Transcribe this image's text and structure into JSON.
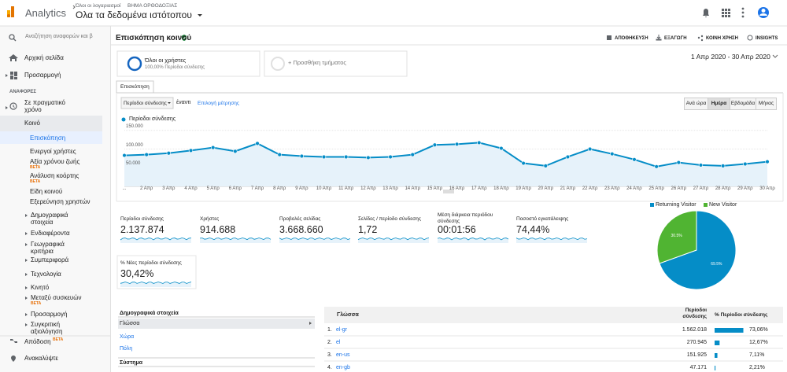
{
  "topbar": {
    "product": "Analytics",
    "account": "Όλοι οι λογαριασμοί",
    "property": "ΒΗΜΑ ΟΡΘΟΔΟΞΙΑΣ",
    "view": "Ολα τα δεδομένα ιστότοπου"
  },
  "sidebar": {
    "search": "Αναζήτηση αναφορών και β",
    "home": "Αρχική σελίδα",
    "customization": "Προσαρμογή",
    "section": "ΑΝΑΦΟΡΕΣ",
    "realtime": "Σε πραγματικό χρόνο",
    "audience": "Κοινό",
    "audience_items": [
      {
        "label": "Επισκόπηση"
      },
      {
        "label": "Ενεργοί χρήστες"
      },
      {
        "label": "Αξία χρόνου ζωής",
        "badge": "BETA"
      },
      {
        "label": "Ανάλυση κοόρτης",
        "badge": "BETA"
      },
      {
        "label": "Είδη κοινού"
      },
      {
        "label": "Εξερεύνηση χρηστών"
      }
    ],
    "audience_groups": [
      {
        "label": "Δημογραφικά στοιχεία"
      },
      {
        "label": "Ενδιαφέροντα"
      },
      {
        "label": "Γεωγραφικά κριτήρια"
      },
      {
        "label": "Συμπεριφορά"
      },
      {
        "label": "Τεχνολογία"
      },
      {
        "label": "Κινητό"
      },
      {
        "label": "Μεταξύ συσκευών",
        "badge": "BETA"
      },
      {
        "label": "Προσαρμογή"
      },
      {
        "label": "Συγκριτική αξιολόγηση"
      }
    ],
    "attribution": {
      "label": "Απόδοση",
      "badge": "BETA"
    },
    "discover": "Ανακαλύψτε"
  },
  "header": {
    "title": "Επισκόπηση κοινού",
    "actions": [
      "ΑΠΟΘΗΚΕΥΣΗ",
      "ΕΞΑΓΩΓΗ",
      "ΚΟΙΝΗ ΧΡΗΣΗ",
      "INSIGHTS"
    ]
  },
  "segments": {
    "active": {
      "name": "Όλοι οι χρήστες",
      "detail": "100,00% Περίοδοι σύνδεσης"
    },
    "add": "+ Προσθήκη τμήματος"
  },
  "date_range": "1 Απρ 2020 - 30 Απρ 2020",
  "tab": "Επισκόπηση",
  "controls": {
    "metric": "Περίοδοι σύνδεσης",
    "versus": "έναντι",
    "select_metric": "Επιλογή μέτρησης",
    "granularity": [
      "Ανά ώρα",
      "Ημέρα",
      "Εβδομάδα",
      "Μήνας"
    ],
    "selected": "Ημέρα"
  },
  "chart_data": {
    "type": "line",
    "categories": [
      "...",
      "2 Απρ",
      "3 Απρ",
      "4 Απρ",
      "5 Απρ",
      "6 Απρ",
      "7 Απρ",
      "8 Απρ",
      "9 Απρ",
      "10 Απρ",
      "11 Απρ",
      "12 Απρ",
      "13 Απρ",
      "14 Απρ",
      "15 Απρ",
      "16 Απρ",
      "17 Απρ",
      "18 Απρ",
      "19 Απρ",
      "20 Απρ",
      "21 Απρ",
      "22 Απρ",
      "23 Απρ",
      "24 Απρ",
      "25 Απρ",
      "26 Απρ",
      "27 Απρ",
      "28 Απρ",
      "29 Απρ",
      "30 Απρ"
    ],
    "series": [
      {
        "name": "Περίοδοι σύνδεσης",
        "color": "#058dc7",
        "values": [
          83000,
          85000,
          89000,
          96000,
          104000,
          94000,
          115000,
          85000,
          81000,
          79000,
          79000,
          77000,
          79000,
          85000,
          111000,
          113000,
          117000,
          102000,
          62000,
          55000,
          79000,
          100000,
          87000,
          72000,
          53000,
          64000,
          57000,
          55000,
          60000,
          66000
        ]
      }
    ],
    "ylim": [
      0,
      160000
    ],
    "yticks": [
      {
        "value": 50000,
        "label": "50.000"
      },
      {
        "value": 100000,
        "label": "100.000"
      },
      {
        "value": 150000,
        "label": "150.000"
      }
    ],
    "grid": true
  },
  "metrics": [
    {
      "label": "Περίοδοι σύνδεσης",
      "value": "2.137.874"
    },
    {
      "label": "Χρήστες",
      "value": "914.688"
    },
    {
      "label": "Προβολές σελίδας",
      "value": "3.668.660"
    },
    {
      "label": "Σελίδες / περίοδο σύνδεσης",
      "value": "1,72"
    },
    {
      "label": "Μέση διάρκεια περιόδου σύνδεσης",
      "value": "00:01:56"
    },
    {
      "label": "Ποσοστό εγκατάλειψης",
      "value": "74,44%"
    },
    {
      "label": "% Νέες περίοδοι σύνδεσης",
      "value": "30,42%"
    }
  ],
  "pie_chart": {
    "type": "pie",
    "categories": [
      "Returning Visitor",
      "New Visitor"
    ],
    "values": [
      69.5,
      30.5
    ],
    "value_labels": [
      "69.5%",
      "30.5%"
    ],
    "colors": [
      "#058dc7",
      "#50b432"
    ]
  },
  "dimensions": {
    "title": "Δημογραφικά στοιχεία",
    "items": [
      "Γλώσσα",
      "Χώρα",
      "Πόλη"
    ],
    "next": "Σύστημα"
  },
  "table": {
    "columns": [
      "Γλώσσα",
      "Περίοδοι σύνδεσης",
      "% Περίοδοι σύνδεσης"
    ],
    "rows": [
      {
        "rank": "1.",
        "name": "el-gr",
        "sessions": "1.562.018",
        "share": {
          "value": 73.06,
          "label": "73,06%"
        }
      },
      {
        "rank": "2.",
        "name": "el",
        "sessions": "270.945",
        "share": {
          "value": 12.67,
          "label": "12,67%"
        }
      },
      {
        "rank": "3.",
        "name": "en-us",
        "sessions": "151.925",
        "share": {
          "value": 7.11,
          "label": "7,11%"
        }
      },
      {
        "rank": "4.",
        "name": "en-gb",
        "sessions": "47.171",
        "share": {
          "value": 2.21,
          "label": "2,21%"
        }
      }
    ]
  }
}
